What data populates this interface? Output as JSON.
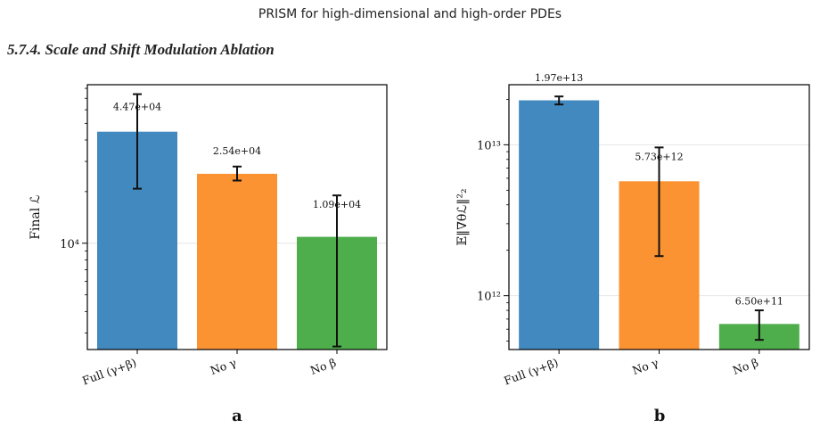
{
  "header": {
    "title": "PRISM for high-dimensional and high-order PDEs"
  },
  "section": {
    "heading": "5.7.4. Scale and Shift Modulation Ablation"
  },
  "chart_data": [
    {
      "panel": "a",
      "type": "bar",
      "scale": "log",
      "ylabel": "Final ℒ",
      "categories": [
        "Full (γ+β)",
        "No γ",
        "No β"
      ],
      "values": [
        44700,
        25400,
        10900
      ],
      "value_labels": [
        "4.47e+04",
        "2.54e+04",
        "1.09e+04"
      ],
      "err_low": [
        20800,
        23200,
        2500
      ],
      "err_high": [
        74000,
        28000,
        19000
      ],
      "colors": [
        "#4189bf",
        "#fb9332",
        "#4fae4c"
      ],
      "ylim": [
        2400,
        84000
      ],
      "ytick_values": [
        10000
      ],
      "ytick_labels": [
        "10⁴"
      ]
    },
    {
      "panel": "b",
      "type": "bar",
      "scale": "log",
      "ylabel": "𝔼‖∇θℒ‖²₂",
      "categories": [
        "Full (γ+β)",
        "No γ",
        "No β"
      ],
      "values": [
        19700000000000,
        5730000000000,
        650000000000
      ],
      "value_labels": [
        "1.97e+13",
        "5.73e+12",
        "6.50e+11"
      ],
      "err_low": [
        18500000000000,
        1830000000000,
        510000000000
      ],
      "err_high": [
        20900000000000,
        9600000000000,
        800000000000
      ],
      "colors": [
        "#4189bf",
        "#fb9332",
        "#4fae4c"
      ],
      "ylim": [
        440000000000,
        25000000000000
      ],
      "ytick_values": [
        1000000000000,
        10000000000000
      ],
      "ytick_labels": [
        "10¹²",
        "10¹³"
      ]
    }
  ]
}
